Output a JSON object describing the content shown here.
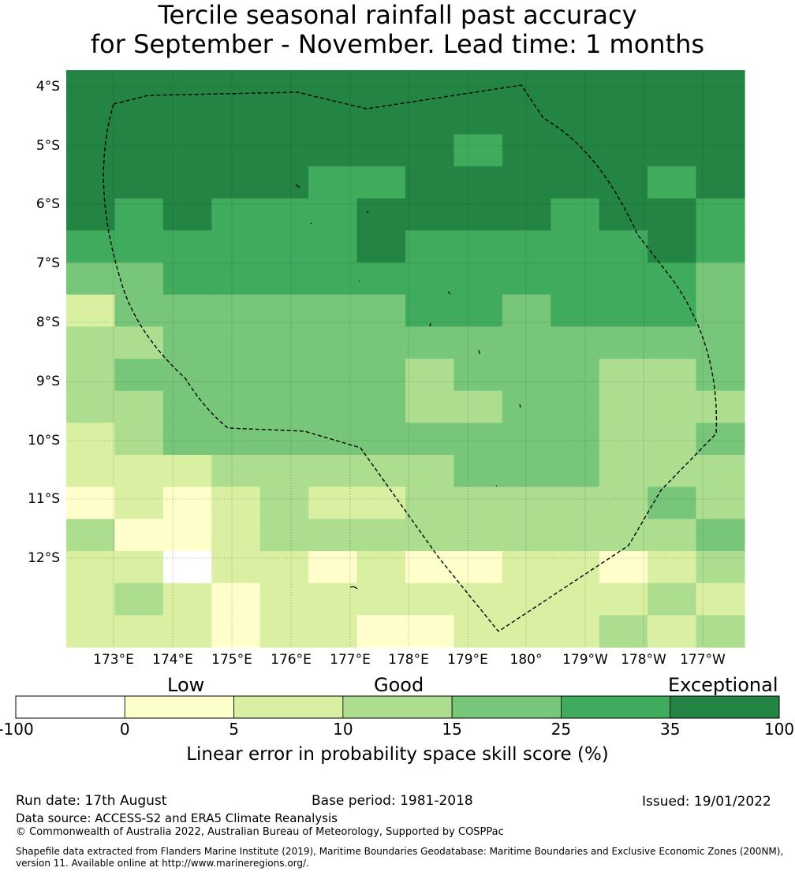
{
  "title": {
    "line1": "Tercile seasonal rainfall past accuracy",
    "line2": "for September - November. Lead time: 1 months"
  },
  "map": {
    "lat_labels": [
      "4°S",
      "5°S",
      "6°S",
      "7°S",
      "8°S",
      "9°S",
      "10°S",
      "11°S",
      "12°S"
    ],
    "lon_labels": [
      "173°E",
      "174°E",
      "175°E",
      "176°E",
      "177°E",
      "178°E",
      "179°E",
      "180°",
      "179°W",
      "178°W",
      "177°W"
    ],
    "grid_colors": [
      "#ffffff",
      "#ffffcc",
      "#d9f0a3",
      "#addd8e",
      "#78c679",
      "#41ab5d",
      "#238443"
    ],
    "grid": [
      [
        6,
        6,
        6,
        6,
        6,
        6,
        6,
        6,
        6,
        6,
        6,
        6,
        6,
        6
      ],
      [
        6,
        6,
        6,
        6,
        6,
        6,
        6,
        6,
        6,
        6,
        6,
        6,
        6,
        6
      ],
      [
        6,
        6,
        6,
        6,
        6,
        6,
        6,
        6,
        5,
        6,
        6,
        6,
        6,
        6
      ],
      [
        6,
        6,
        6,
        6,
        6,
        5,
        5,
        6,
        6,
        6,
        6,
        6,
        5,
        6
      ],
      [
        6,
        5,
        6,
        5,
        5,
        5,
        6,
        6,
        6,
        6,
        5,
        6,
        6,
        5
      ],
      [
        5,
        5,
        5,
        5,
        5,
        5,
        6,
        5,
        5,
        5,
        5,
        5,
        6,
        5
      ],
      [
        4,
        4,
        5,
        5,
        5,
        5,
        5,
        5,
        5,
        5,
        5,
        5,
        5,
        4
      ],
      [
        2,
        4,
        4,
        4,
        4,
        4,
        4,
        5,
        5,
        4,
        5,
        5,
        5,
        4
      ],
      [
        3,
        3,
        4,
        4,
        4,
        4,
        4,
        4,
        4,
        4,
        4,
        4,
        4,
        4
      ],
      [
        3,
        4,
        4,
        4,
        4,
        4,
        4,
        3,
        4,
        4,
        4,
        3,
        3,
        4
      ],
      [
        3,
        3,
        4,
        4,
        4,
        4,
        4,
        3,
        3,
        4,
        4,
        3,
        3,
        3
      ],
      [
        2,
        3,
        4,
        4,
        4,
        4,
        4,
        4,
        4,
        4,
        4,
        3,
        3,
        4
      ],
      [
        2,
        2,
        2,
        3,
        3,
        3,
        3,
        3,
        4,
        4,
        4,
        3,
        3,
        3
      ],
      [
        1,
        2,
        1,
        2,
        3,
        2,
        2,
        3,
        3,
        3,
        3,
        3,
        4,
        3
      ],
      [
        3,
        1,
        1,
        2,
        3,
        3,
        3,
        3,
        3,
        3,
        3,
        3,
        3,
        4
      ],
      [
        2,
        2,
        0,
        2,
        2,
        1,
        2,
        1,
        1,
        2,
        2,
        1,
        2,
        3
      ],
      [
        2,
        3,
        2,
        1,
        2,
        2,
        2,
        2,
        2,
        2,
        2,
        2,
        3,
        2
      ],
      [
        2,
        2,
        2,
        1,
        2,
        2,
        1,
        1,
        2,
        2,
        2,
        3,
        2,
        3
      ]
    ]
  },
  "legend": {
    "categories": [
      "Low",
      "Good",
      "Exceptional"
    ],
    "colors": [
      "#ffffff",
      "#ffffcc",
      "#d9f0a3",
      "#addd8e",
      "#78c679",
      "#41ab5d",
      "#238443"
    ],
    "tick_labels": [
      "-100",
      "0",
      "5",
      "10",
      "15",
      "25",
      "35",
      "100"
    ],
    "title": "Linear error in probability space skill score (%)"
  },
  "footer": {
    "run_date": "Run date: 17th August",
    "base_period": "Base period: 1981-2018",
    "issued": "Issued: 19/01/2022",
    "data_source": "Data source: ACCESS-S2 and ERA5 Climate Reanalysis",
    "copyright": "© Commonwealth of Australia 2022, Australian Bureau of Meteorology, Supported by COSPPac",
    "shapefile": "Shapefile data extracted from Flanders Marine Institute (2019), Maritime Boundaries Geodatabase: Maritime Boundaries and Exclusive Economic Zones (200NM), version 11. Available online at http://www.marineregions.org/."
  }
}
